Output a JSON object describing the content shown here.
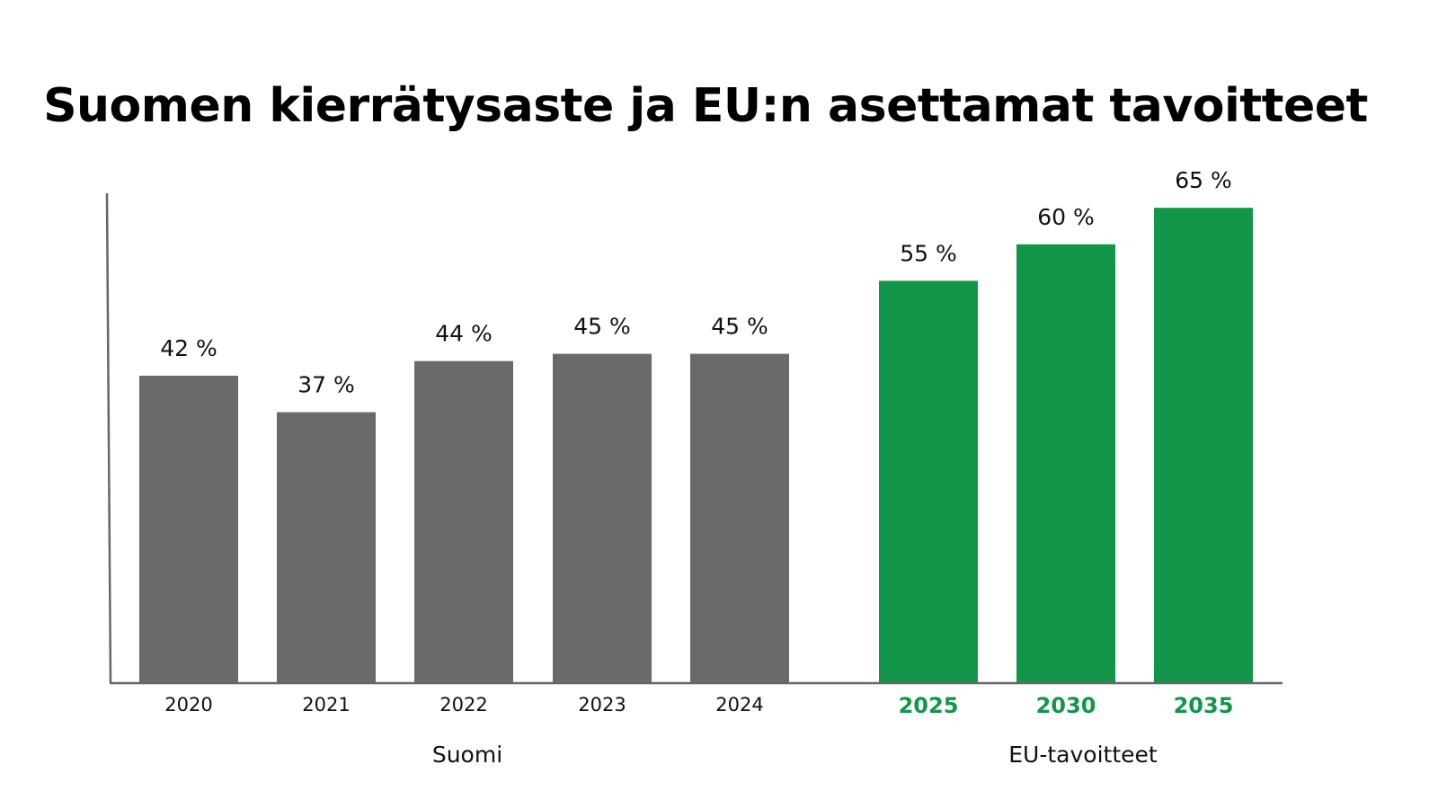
{
  "chart_data": {
    "type": "bar",
    "title": "Suomen kierrätysaste ja EU:n asettamat tavoitteet",
    "ylabel": "",
    "xlabel": "",
    "ylim": [
      0,
      67
    ],
    "grid": false,
    "categories": [
      "2020",
      "2021",
      "2022",
      "2023",
      "2024",
      "2025",
      "2030",
      "2035"
    ],
    "groups": [
      {
        "name": "Suomi",
        "categories": [
          "2020",
          "2021",
          "2022",
          "2023",
          "2024"
        ],
        "values": [
          42,
          37,
          44,
          45,
          45
        ],
        "color": "#6a6a6b",
        "data_labels": [
          "42 %",
          "37 %",
          "44 %",
          "45 %",
          "45 %"
        ]
      },
      {
        "name": "EU-tavoitteet",
        "categories": [
          "2025",
          "2030",
          "2035"
        ],
        "values": [
          55,
          60,
          65
        ],
        "color": "#12964a",
        "data_labels": [
          "55 %",
          "60 %",
          "65 %"
        ]
      }
    ],
    "axis_color": "#666666"
  }
}
